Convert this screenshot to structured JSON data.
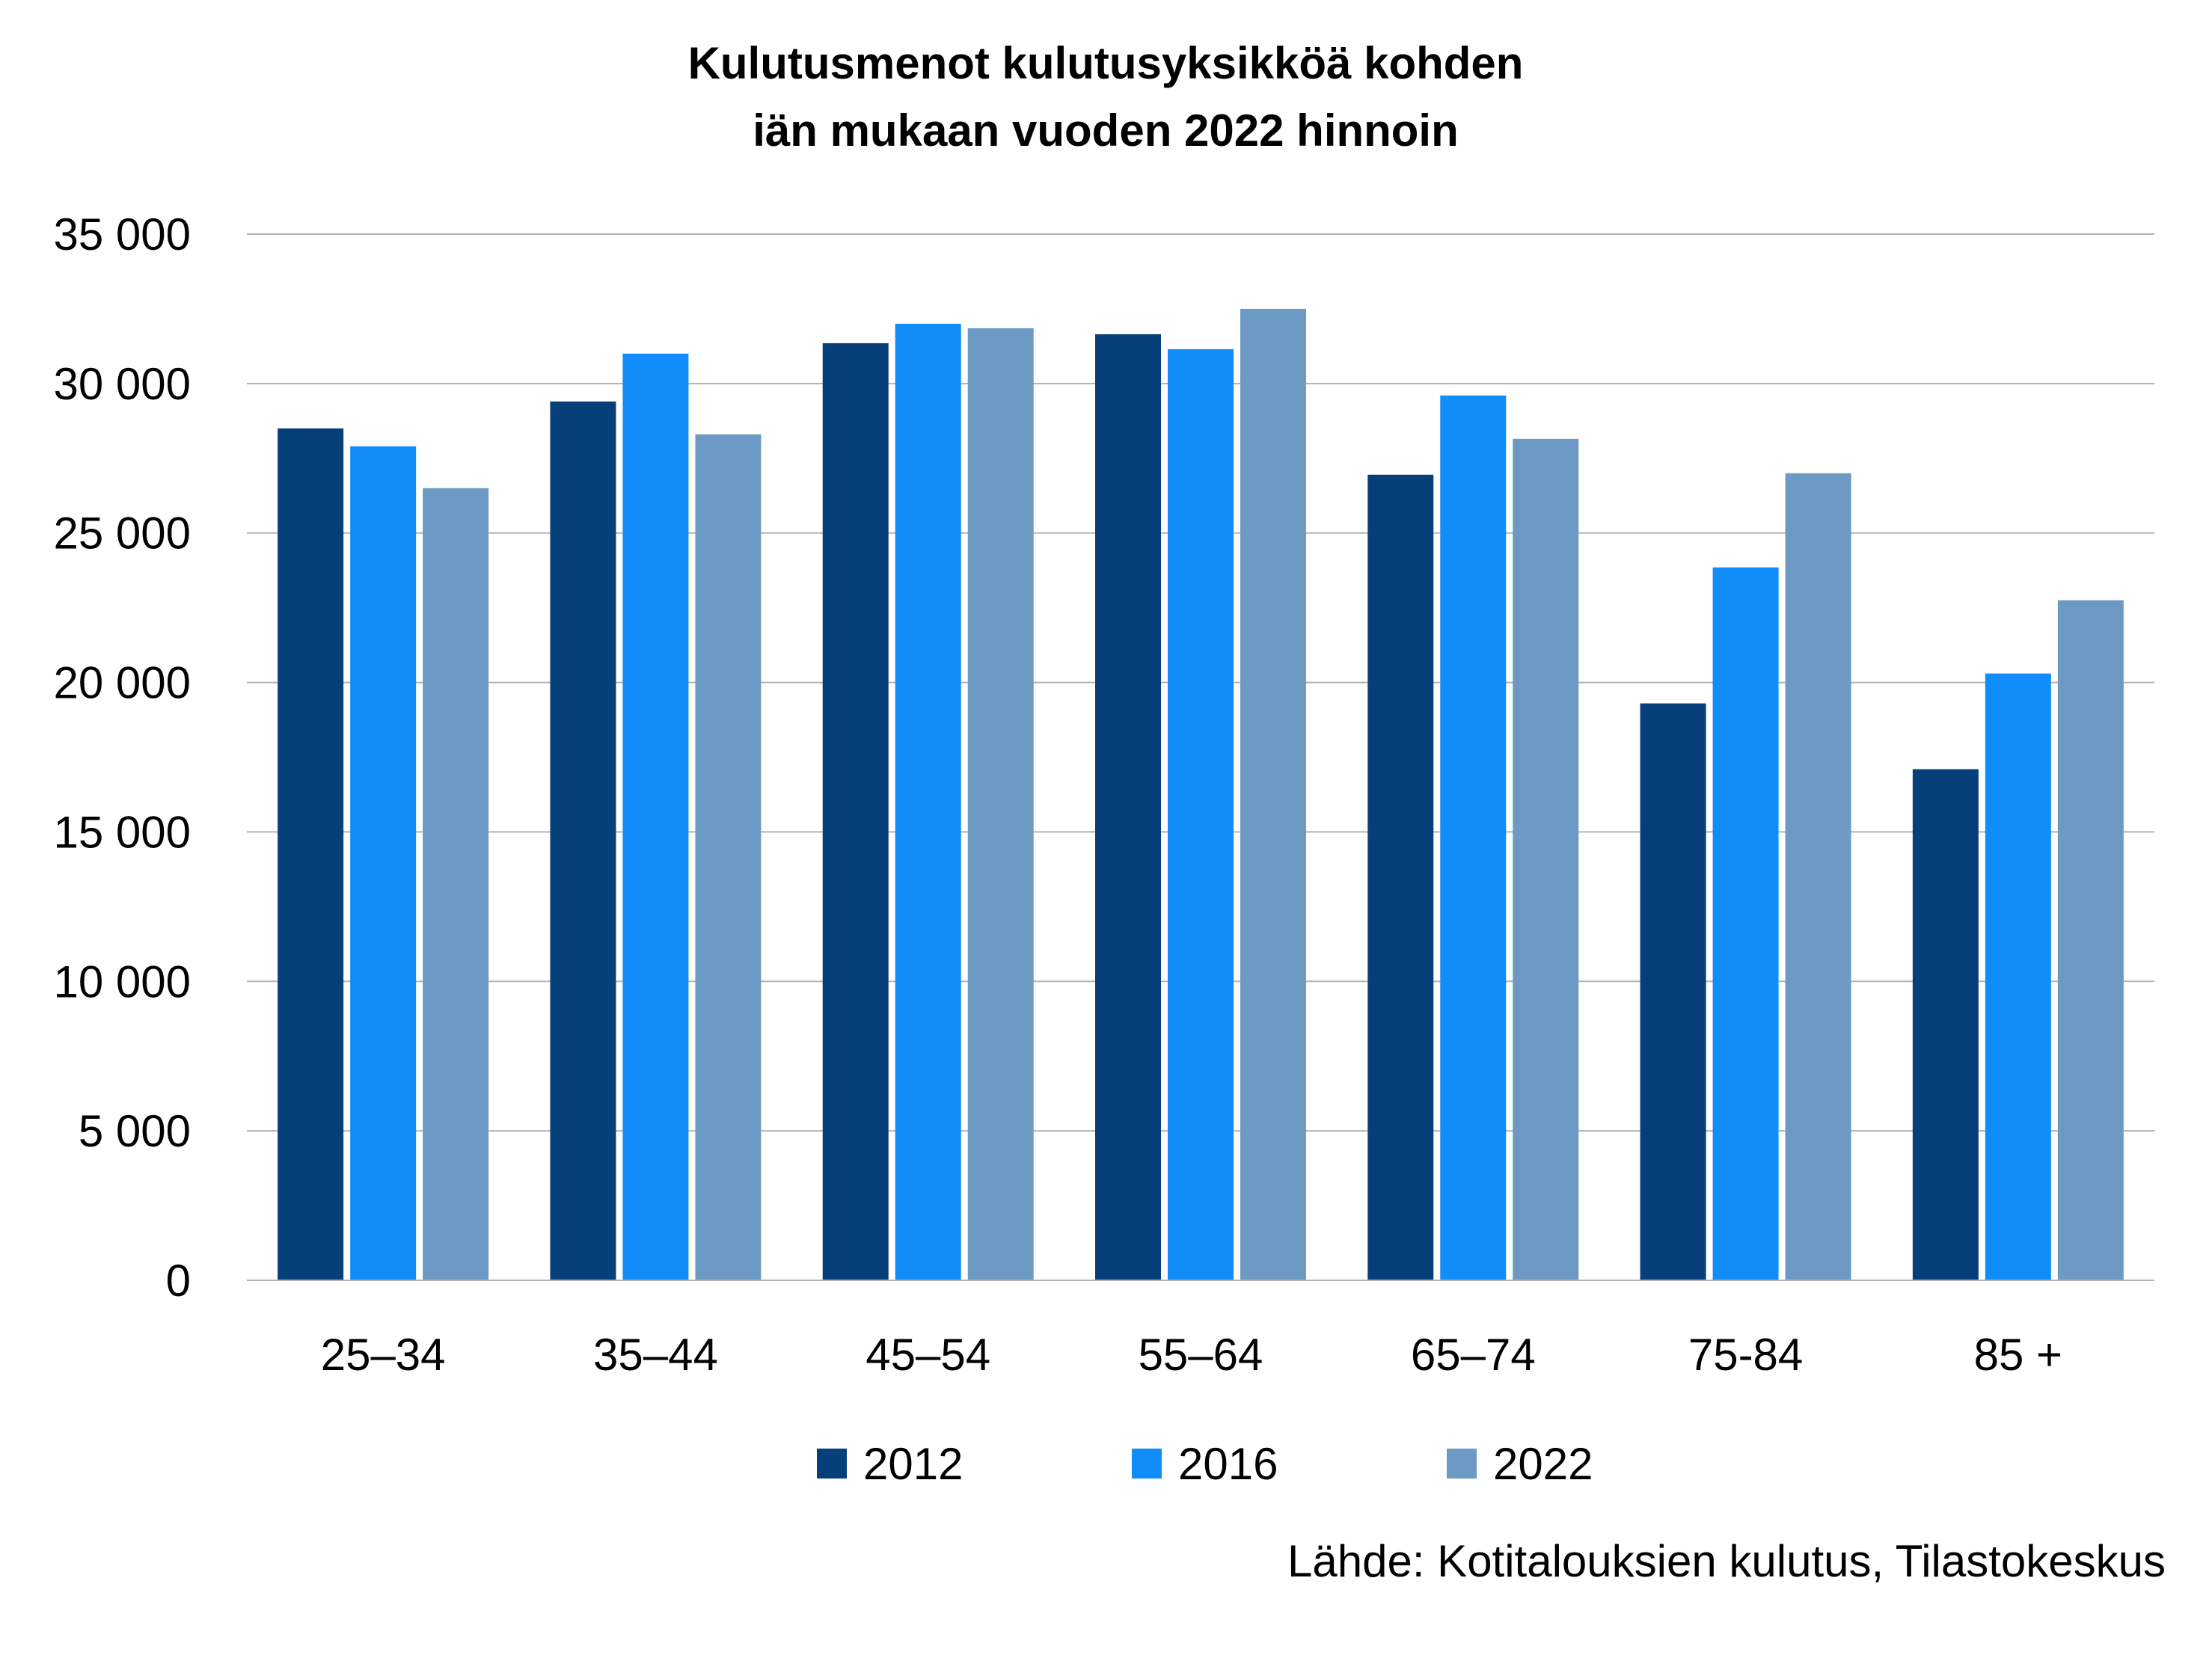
{
  "chart_data": {
    "type": "bar",
    "title": [
      "Kulutusmenot kulutusyksikköä kohden",
      "iän mukaan vuoden 2022 hinnoin"
    ],
    "xlabel": "",
    "ylabel": "",
    "categories": [
      "25–34",
      "35–44",
      "45–54",
      "55–64",
      "65–74",
      "75-84",
      "85 +"
    ],
    "series": [
      {
        "name": "2012",
        "color": "#063f7a",
        "values": [
          28500,
          29400,
          31350,
          31650,
          26950,
          19300,
          17100
        ]
      },
      {
        "name": "2016",
        "color": "#118df9",
        "values": [
          27900,
          31000,
          32000,
          31150,
          29600,
          23850,
          20300
        ]
      },
      {
        "name": "2022",
        "color": "#6d9ac4",
        "values": [
          26500,
          28300,
          31850,
          32500,
          28150,
          27000,
          22750
        ]
      }
    ],
    "ylim": [
      0,
      35000
    ],
    "yticks": [
      0,
      5000,
      10000,
      15000,
      20000,
      25000,
      30000,
      35000
    ],
    "ytick_labels": [
      "0",
      "5 000",
      "10 000",
      "15 000",
      "20 000",
      "25 000",
      "30 000",
      "35 000"
    ],
    "grid": true,
    "gridline_color": "#b3b3b3",
    "legend_position": "bottom",
    "source": "Lähde: Kotitalouksien kulutus, Tilastokeskus"
  }
}
